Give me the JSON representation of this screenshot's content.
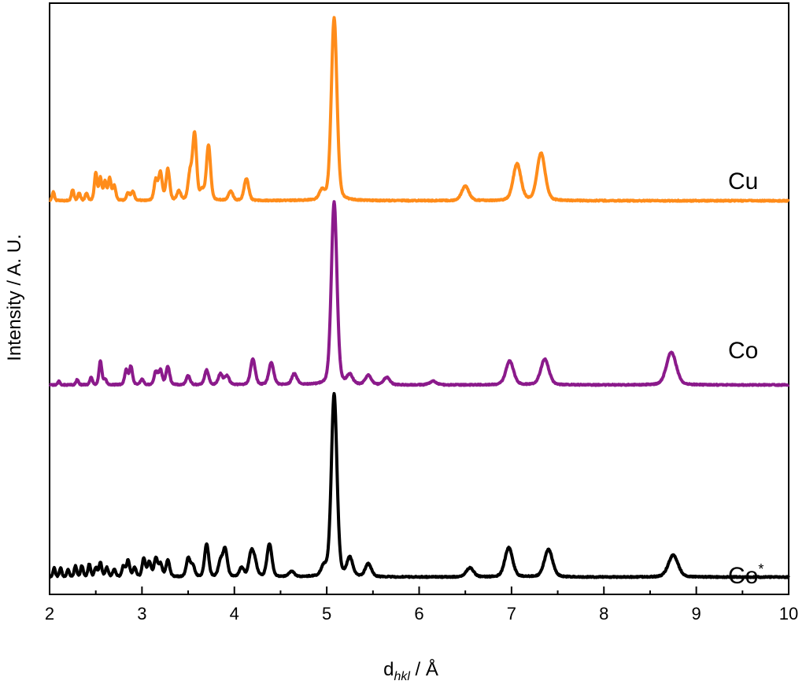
{
  "chart_data": {
    "type": "line",
    "xlabel": "d",
    "xlabel_sub": "hkl",
    "xlabel_unit": " / Å",
    "ylabel": "Intensity / A. U.",
    "xlim": [
      2,
      10
    ],
    "x_ticks": [
      2,
      3,
      4,
      5,
      6,
      7,
      8,
      9,
      10
    ],
    "x_tick_labels": [
      "2",
      "3",
      "4",
      "5",
      "6",
      "7",
      "8",
      "9",
      "10"
    ],
    "y_ticks_shown": false,
    "grid": false,
    "series": [
      {
        "name": "Cu",
        "label": "Cu",
        "label_sup": "",
        "color": "#FF8C1A",
        "offset": 2,
        "peaks": [
          [
            2.04,
            0.05
          ],
          [
            2.25,
            0.06
          ],
          [
            2.32,
            0.04
          ],
          [
            2.4,
            0.04
          ],
          [
            2.5,
            0.15
          ],
          [
            2.55,
            0.12
          ],
          [
            2.6,
            0.1
          ],
          [
            2.65,
            0.12
          ],
          [
            2.7,
            0.08
          ],
          [
            2.85,
            0.04
          ],
          [
            2.9,
            0.05
          ],
          [
            3.15,
            0.11
          ],
          [
            3.2,
            0.15
          ],
          [
            3.28,
            0.17
          ],
          [
            3.4,
            0.05
          ],
          [
            3.52,
            0.14
          ],
          [
            3.57,
            0.36
          ],
          [
            3.65,
            0.05
          ],
          [
            3.72,
            0.3
          ],
          [
            3.96,
            0.05
          ],
          [
            4.13,
            0.12
          ],
          [
            4.95,
            0.05
          ],
          [
            5.08,
            1.0
          ],
          [
            6.5,
            0.08
          ],
          [
            7.06,
            0.2
          ],
          [
            7.32,
            0.26
          ]
        ]
      },
      {
        "name": "Co",
        "label": "Co",
        "label_sup": "",
        "color": "#8B1A8B",
        "offset": 1,
        "peaks": [
          [
            2.1,
            0.02
          ],
          [
            2.3,
            0.03
          ],
          [
            2.45,
            0.04
          ],
          [
            2.55,
            0.13
          ],
          [
            2.6,
            0.03
          ],
          [
            2.83,
            0.08
          ],
          [
            2.88,
            0.1
          ],
          [
            3.0,
            0.03
          ],
          [
            3.15,
            0.07
          ],
          [
            3.2,
            0.08
          ],
          [
            3.28,
            0.1
          ],
          [
            3.5,
            0.05
          ],
          [
            3.7,
            0.08
          ],
          [
            3.85,
            0.06
          ],
          [
            3.92,
            0.05
          ],
          [
            4.2,
            0.14
          ],
          [
            4.4,
            0.12
          ],
          [
            4.65,
            0.06
          ],
          [
            5.08,
            1.0
          ],
          [
            5.25,
            0.05
          ],
          [
            5.45,
            0.05
          ],
          [
            5.65,
            0.04
          ],
          [
            6.15,
            0.02
          ],
          [
            6.98,
            0.13
          ],
          [
            7.36,
            0.14
          ],
          [
            8.73,
            0.18
          ]
        ]
      },
      {
        "name": "Co*",
        "label": "Co",
        "label_sup": "*",
        "color": "#000000",
        "offset": 0,
        "peaks": [
          [
            2.05,
            0.05
          ],
          [
            2.12,
            0.05
          ],
          [
            2.2,
            0.04
          ],
          [
            2.28,
            0.06
          ],
          [
            2.35,
            0.06
          ],
          [
            2.43,
            0.07
          ],
          [
            2.5,
            0.05
          ],
          [
            2.55,
            0.08
          ],
          [
            2.62,
            0.05
          ],
          [
            2.7,
            0.04
          ],
          [
            2.8,
            0.06
          ],
          [
            2.85,
            0.09
          ],
          [
            2.92,
            0.05
          ],
          [
            3.02,
            0.1
          ],
          [
            3.08,
            0.08
          ],
          [
            3.15,
            0.1
          ],
          [
            3.2,
            0.07
          ],
          [
            3.28,
            0.09
          ],
          [
            3.5,
            0.1
          ],
          [
            3.55,
            0.06
          ],
          [
            3.7,
            0.18
          ],
          [
            3.85,
            0.08
          ],
          [
            3.9,
            0.15
          ],
          [
            4.08,
            0.05
          ],
          [
            4.18,
            0.12
          ],
          [
            4.22,
            0.08
          ],
          [
            4.38,
            0.18
          ],
          [
            4.62,
            0.03
          ],
          [
            4.97,
            0.05
          ],
          [
            5.08,
            1.0
          ],
          [
            5.25,
            0.1
          ],
          [
            5.45,
            0.07
          ],
          [
            6.55,
            0.05
          ],
          [
            6.97,
            0.16
          ],
          [
            7.4,
            0.15
          ],
          [
            8.75,
            0.12
          ]
        ]
      }
    ]
  }
}
